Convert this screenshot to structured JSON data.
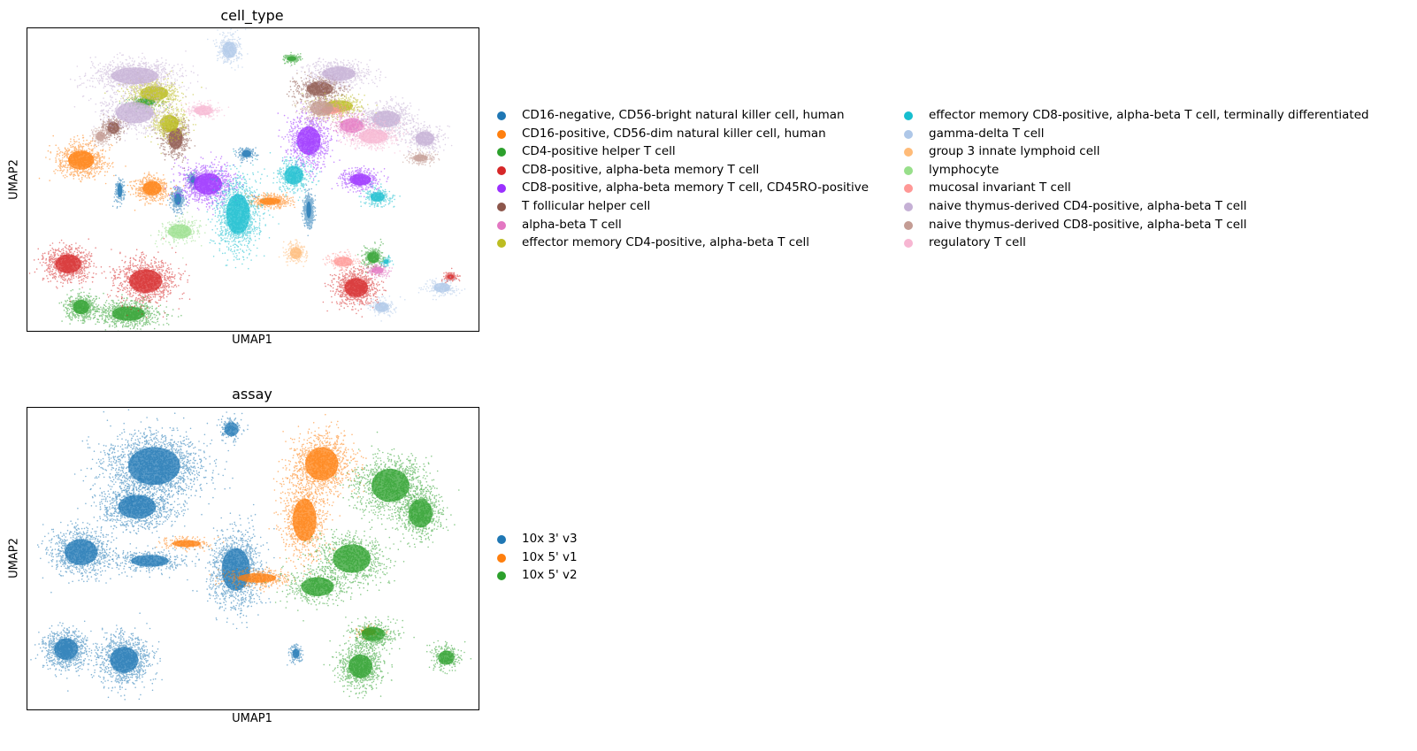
{
  "chart_data": [
    {
      "type": "scatter",
      "title": "cell_type",
      "xlabel": "UMAP1",
      "ylabel": "UMAP2",
      "grid": false,
      "ticks": false,
      "legend_position": "right",
      "legend_columns": 2,
      "series": [
        {
          "name": "CD16-negative, CD56-bright natural killer cell, human",
          "color": "#1f77b4",
          "clusters": [
            [
              -3.5,
              -0.9,
              1.2,
              0.15,
              0.25
            ],
            [
              -0.3,
              1.2,
              0.6,
              0.2,
              0.15
            ],
            [
              2.6,
              -1.4,
              2.5,
              0.1,
              0.35
            ],
            [
              -6.2,
              -0.5,
              0.6,
              0.1,
              0.3
            ],
            [
              -2.8,
              0.0,
              0.8,
              0.1,
              0.15
            ]
          ]
        },
        {
          "name": "CD16-positive, CD56-dim natural killer cell, human",
          "color": "#ff7f0e",
          "clusters": [
            [
              -8.0,
              0.9,
              2.6,
              0.55,
              0.4
            ],
            [
              -4.7,
              -0.4,
              1.6,
              0.4,
              0.3
            ],
            [
              0.8,
              -1.0,
              1.2,
              0.45,
              0.15
            ]
          ]
        },
        {
          "name": "CD4-positive helper T cell",
          "color": "#2ca02c",
          "clusters": [
            [
              -8.0,
              -5.9,
              1.8,
              0.35,
              0.3
            ],
            [
              -5.8,
              -6.2,
              2.6,
              0.7,
              0.3
            ],
            [
              5.6,
              -3.6,
              0.8,
              0.25,
              0.25
            ],
            [
              1.8,
              5.6,
              0.6,
              0.2,
              0.1
            ],
            [
              -5.0,
              3.6,
              0.6,
              0.4,
              0.15
            ]
          ]
        },
        {
          "name": "CD8-positive, alpha-beta memory T cell",
          "color": "#d62728",
          "clusters": [
            [
              -8.6,
              -3.9,
              2.6,
              0.55,
              0.4
            ],
            [
              -5.0,
              -4.7,
              3.0,
              0.7,
              0.5
            ],
            [
              4.8,
              -5.0,
              2.6,
              0.5,
              0.4
            ],
            [
              9.2,
              -4.5,
              0.5,
              0.15,
              0.1
            ]
          ]
        },
        {
          "name": "CD8-positive, alpha-beta memory T cell, CD45RO-positive",
          "color": "#9b30ff",
          "clusters": [
            [
              -2.1,
              -0.2,
              3.2,
              0.6,
              0.45
            ],
            [
              2.6,
              1.8,
              2.4,
              0.5,
              0.6
            ],
            [
              5.0,
              0.0,
              1.4,
              0.45,
              0.25
            ]
          ]
        },
        {
          "name": "T follicular helper cell",
          "color": "#8c564b",
          "clusters": [
            [
              -3.6,
              1.9,
              1.6,
              0.3,
              0.45
            ],
            [
              -6.5,
              2.4,
              0.8,
              0.25,
              0.25
            ],
            [
              3.1,
              4.2,
              1.6,
              0.55,
              0.3
            ]
          ]
        },
        {
          "name": "alpha-beta T cell",
          "color": "#e377c2",
          "clusters": [
            [
              4.6,
              2.5,
              1.2,
              0.5,
              0.3
            ],
            [
              5.8,
              -4.2,
              0.6,
              0.25,
              0.15
            ]
          ]
        },
        {
          "name": "effector memory CD4-positive, alpha-beta T cell",
          "color": "#bcbd22",
          "clusters": [
            [
              -4.6,
              4.0,
              2.2,
              0.6,
              0.3
            ],
            [
              -3.9,
              2.6,
              1.6,
              0.4,
              0.35
            ],
            [
              4.0,
              3.4,
              1.0,
              0.6,
              0.25
            ]
          ]
        },
        {
          "name": "effector memory CD8-positive, alpha-beta T cell, terminally differentiated",
          "color": "#17becf",
          "clusters": [
            [
              -0.7,
              -1.6,
              4.0,
              0.5,
              0.85
            ],
            [
              1.9,
              0.2,
              1.2,
              0.4,
              0.4
            ],
            [
              5.8,
              -0.8,
              0.8,
              0.3,
              0.2
            ],
            [
              6.2,
              -3.8,
              0.3,
              0.1,
              0.1
            ]
          ]
        },
        {
          "name": "gamma-delta T cell",
          "color": "#aec7e8",
          "clusters": [
            [
              -1.1,
              6.0,
              0.9,
              0.3,
              0.35
            ],
            [
              8.8,
              -5.0,
              0.6,
              0.35,
              0.2
            ],
            [
              6.0,
              -5.9,
              0.6,
              0.3,
              0.2
            ]
          ]
        },
        {
          "name": "group 3 innate lymphoid cell",
          "color": "#ffbb78",
          "clusters": [
            [
              2.0,
              -3.4,
              0.6,
              0.25,
              0.25
            ]
          ]
        },
        {
          "name": "lymphocyte",
          "color": "#98df8a",
          "clusters": [
            [
              -3.4,
              -2.4,
              0.8,
              0.5,
              0.3
            ]
          ]
        },
        {
          "name": "mucosal invariant T cell",
          "color": "#ff9896",
          "clusters": [
            [
              3.6,
              3.2,
              0.6,
              0.4,
              0.15
            ],
            [
              4.2,
              -3.8,
              0.6,
              0.4,
              0.2
            ]
          ]
        },
        {
          "name": "naive thymus-derived CD4-positive, alpha-beta T cell",
          "color": "#c5b0d5",
          "clusters": [
            [
              -5.5,
              4.8,
              3.0,
              1.0,
              0.35
            ],
            [
              -5.5,
              3.1,
              2.0,
              0.8,
              0.45
            ],
            [
              4.0,
              4.9,
              2.0,
              0.7,
              0.3
            ],
            [
              6.2,
              2.8,
              2.0,
              0.6,
              0.35
            ],
            [
              8.0,
              1.9,
              1.2,
              0.4,
              0.3
            ]
          ]
        },
        {
          "name": "naive thymus-derived CD8-positive, alpha-beta T cell",
          "color": "#c49c94",
          "clusters": [
            [
              3.2,
              3.3,
              1.2,
              0.5,
              0.3
            ],
            [
              7.8,
              1.0,
              0.6,
              0.3,
              0.15
            ],
            [
              -7.1,
              2.0,
              0.6,
              0.2,
              0.2
            ]
          ]
        },
        {
          "name": "regulatory T cell",
          "color": "#f7b6d2",
          "clusters": [
            [
              5.6,
              2.0,
              1.6,
              0.6,
              0.3
            ],
            [
              -2.3,
              3.2,
              0.6,
              0.4,
              0.2
            ]
          ]
        }
      ]
    },
    {
      "type": "scatter",
      "title": "assay",
      "xlabel": "UMAP1",
      "ylabel": "UMAP2",
      "grid": false,
      "ticks": false,
      "legend_position": "right",
      "legend_columns": 1,
      "series": [
        {
          "name": "10x 3' v3",
          "color": "#1f77b4",
          "clusters": [
            [
              -4.6,
              4.3,
              6.0,
              1.1,
              0.8
            ],
            [
              -5.4,
              2.4,
              3.0,
              0.8,
              0.5
            ],
            [
              -8.0,
              0.3,
              3.0,
              0.7,
              0.55
            ],
            [
              -0.8,
              -0.5,
              4.0,
              0.6,
              0.9
            ],
            [
              -4.8,
              -0.1,
              1.2,
              0.8,
              0.25
            ],
            [
              -8.7,
              -4.2,
              3.0,
              0.5,
              0.45
            ],
            [
              -6.0,
              -4.7,
              3.4,
              0.6,
              0.55
            ],
            [
              -1.0,
              6.0,
              0.5,
              0.3,
              0.3
            ],
            [
              2.0,
              -4.4,
              0.5,
              0.15,
              0.2
            ]
          ]
        },
        {
          "name": "10x 5' v1",
          "color": "#ff7f0e",
          "clusters": [
            [
              3.2,
              4.4,
              3.4,
              0.7,
              0.7
            ],
            [
              2.4,
              1.8,
              2.8,
              0.5,
              0.9
            ],
            [
              0.2,
              -0.9,
              1.2,
              0.8,
              0.2
            ],
            [
              -3.1,
              0.7,
              0.6,
              0.6,
              0.15
            ],
            [
              5.4,
              -3.4,
              0.4,
              0.3,
              0.15
            ]
          ]
        },
        {
          "name": "10x 5' v2",
          "color": "#2ca02c",
          "clusters": [
            [
              6.4,
              3.4,
              3.2,
              0.8,
              0.7
            ],
            [
              7.8,
              2.1,
              2.2,
              0.5,
              0.6
            ],
            [
              4.6,
              0.0,
              2.6,
              0.8,
              0.6
            ],
            [
              3.0,
              -1.3,
              1.6,
              0.7,
              0.4
            ],
            [
              5.0,
              -5.0,
              2.8,
              0.5,
              0.5
            ],
            [
              5.6,
              -3.5,
              1.4,
              0.5,
              0.3
            ],
            [
              9.0,
              -4.6,
              0.8,
              0.35,
              0.3
            ]
          ]
        }
      ]
    }
  ]
}
